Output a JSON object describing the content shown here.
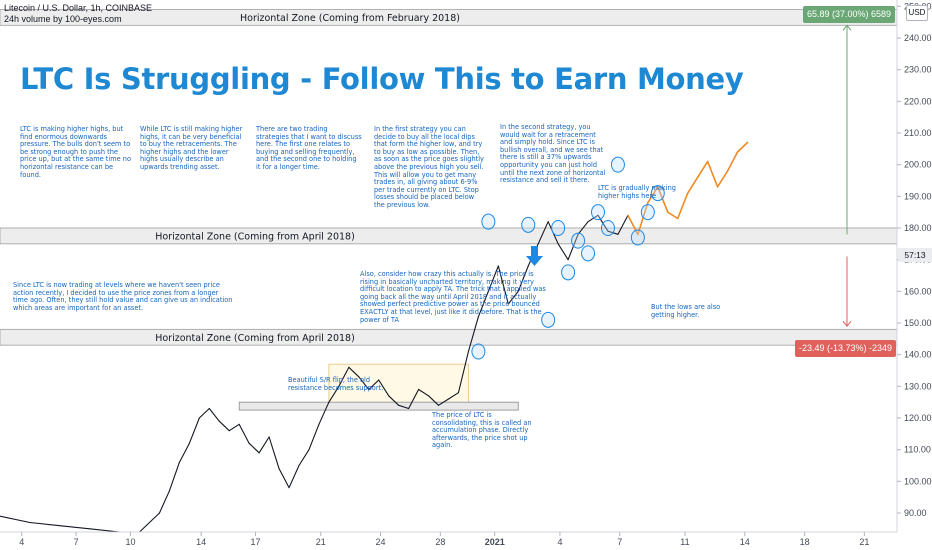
{
  "header": {
    "symbol_line": "Litecoin / U.S. Dollar, 1h, COINBASE",
    "indicator_line": "24h volume by 100-eyes.com"
  },
  "title": "LTC Is Struggling - Follow This to Earn Money",
  "currency_button": "USD",
  "price_tag": "57:13",
  "measure_up": {
    "label": "65.89 (37.00%) 6589",
    "color": "#6aa774"
  },
  "measure_down": {
    "label": "-23.49 (-13.73%) -2349",
    "color": "#e0605c"
  },
  "zones": [
    {
      "label": "Horizontal Zone (Coming from February 2018)",
      "y_from": 244,
      "y_to": 249
    },
    {
      "label": "Horizontal Zone (Coming from April 2018)",
      "y_from": 175,
      "y_to": 180
    },
    {
      "label": "Horizontal Zone (Coming from April 2018)",
      "y_from": 143,
      "y_to": 148
    }
  ],
  "notes": [
    "LTC is making higher highs, but find enormous downwards pressure. The bulls don't seem to be strong enough to push the price up, but at the same time no horizontal resistance can be found.",
    "While LTC is still making higher highs, it can be very beneficial to buy the retracements. The higher highs and the lower highs usually describe an upwards trending asset.",
    "There are two trading strategies that I want to discuss here. The first one relates to buying and selling frequently, and the second one to holding it for a longer time.",
    "In the first strategy you can decide to buy all the local dips that form the higher low, and try to buy as low as possible. Then, as soon as the price goes slightly above the previous high you sell. This will allow you to get many trades in, all giving about 6-9% per trade currently on LTC. Stop losses should be placed below the previous low.",
    "In the second strategy, you would wait for a retracement and simply hold. Since LTC is bullish overall, and we see that there is still a 37% upwards opportunity you can just hold until the next zone of horizontal resistance and sell it there.",
    "LTC is gradually making higher highs here",
    "Since LTC is now trading at levels where we haven't seen price action recently, I decided to use the price zones from a longer time ago. Often, they still hold value and can give us an indication which areas are important for an asset.",
    "Also, consider how crazy this actually is. The price is rising in basically uncharted territory, making it very difficult location to apply TA. The trick that I applied was going back all the way until April 2018 and it actually showed perfect predictive power as the price bounced EXACTLY at that level, just like it did before. That is the power of TA",
    "But the lows are also getting higher.",
    "Beautiful S/R flip, the old resistance becomes support.",
    "The price of LTC is consolidating, this is called an accumulation phase. Directly afterwards, the price shot up again."
  ],
  "chart_data": {
    "type": "line",
    "title": "LTC Is Struggling - Follow This to Earn Money",
    "ylim": [
      84,
      252
    ],
    "y_ticks": [
      90,
      100,
      110,
      120,
      130,
      140,
      150,
      160,
      170,
      180,
      190,
      200,
      210,
      220,
      230,
      240,
      250
    ],
    "x_tick_labels": [
      "4",
      "7",
      "10",
      "14",
      "17",
      "21",
      "24",
      "28",
      "2021",
      "4",
      "7",
      "11",
      "14",
      "18",
      "21"
    ],
    "series": [
      {
        "color": "#131722",
        "x": [
          0,
          3,
          6,
          9,
          12,
          14,
          16,
          17,
          18,
          19,
          20,
          21,
          22,
          23,
          24,
          25,
          26,
          27,
          28,
          29,
          30,
          31,
          32,
          33,
          34,
          35,
          36,
          37,
          38,
          39,
          40,
          41,
          42,
          43,
          44,
          45,
          46,
          47,
          48,
          49,
          50,
          51,
          52,
          53,
          54,
          55,
          56,
          57,
          58,
          59,
          60,
          61,
          62,
          63
        ],
        "y": [
          89,
          87,
          86,
          85,
          84,
          84,
          90,
          97,
          106,
          112,
          120,
          123,
          119,
          116,
          118,
          112,
          109,
          114,
          104,
          98,
          105,
          110,
          118,
          125,
          130,
          136,
          133,
          129,
          132,
          127,
          124,
          123,
          129,
          127,
          124,
          126,
          128,
          141,
          152,
          160,
          168,
          156,
          160,
          168,
          175,
          182,
          175,
          170,
          178,
          182,
          184,
          179,
          178,
          184
        ]
      },
      {
        "color": "#f08a24",
        "x": [
          63,
          64,
          65,
          66,
          67,
          68,
          69,
          70,
          71,
          72,
          73,
          74,
          75
        ],
        "y": [
          184,
          178,
          188,
          193,
          185,
          183,
          191,
          196,
          201,
          193,
          198,
          204,
          207
        ]
      }
    ],
    "circled_pivots": {
      "x": [
        48,
        49,
        53,
        55,
        56,
        57,
        58,
        59,
        60,
        61,
        62,
        64,
        65,
        66
      ],
      "y": [
        141,
        182,
        181,
        151,
        180,
        166,
        176,
        172,
        185,
        180,
        200,
        177,
        185,
        191
      ]
    },
    "accumulation_box": {
      "x_from": 33,
      "x_to": 47,
      "y_from": 123,
      "y_to": 137
    },
    "sr_flip_zone": {
      "x_from": 24,
      "x_to": 52,
      "y_from": 122.5,
      "y_to": 125
    }
  }
}
